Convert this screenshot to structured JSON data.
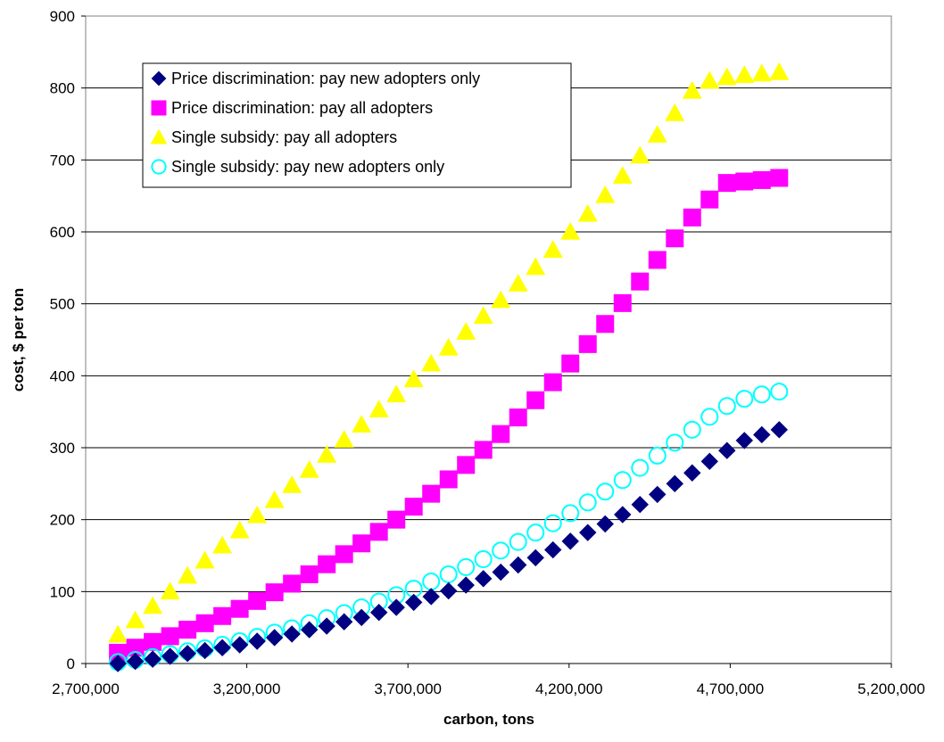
{
  "chart_data": {
    "type": "scatter",
    "title": "",
    "xlabel": "carbon, tons",
    "ylabel": "cost, $ per ton",
    "xlim": [
      2700000,
      5200000
    ],
    "ylim": [
      0,
      900
    ],
    "x_ticks": [
      "2,700,000",
      "3,200,000",
      "3,700,000",
      "4,200,000",
      "4,700,000",
      "5,200,000"
    ],
    "y_ticks": [
      "0",
      "100",
      "200",
      "300",
      "400",
      "500",
      "600",
      "700",
      "800",
      "900"
    ],
    "grid": "horizontal",
    "legend_placement": "top-left",
    "series": [
      {
        "name": "Price discrimination:  pay new adopters only",
        "marker": "diamond",
        "color": "#000080",
        "x": [
          2800000,
          2854000,
          2908000,
          2962000,
          3016000,
          3070000,
          3124000,
          3178000,
          3232000,
          3286000,
          3340000,
          3394000,
          3448000,
          3502000,
          3556000,
          3610000,
          3664000,
          3718000,
          3772000,
          3826000,
          3880000,
          3934000,
          3988000,
          4042000,
          4096000,
          4150000,
          4204000,
          4258000,
          4312000,
          4366000,
          4420000,
          4474000,
          4528000,
          4582000,
          4636000,
          4690000,
          4744000,
          4798000,
          4852000
        ],
        "y": [
          0,
          3,
          6,
          10,
          14,
          18,
          22,
          26,
          31,
          36,
          41,
          47,
          52,
          58,
          64,
          71,
          78,
          85,
          93,
          101,
          109,
          118,
          127,
          137,
          147,
          158,
          170,
          182,
          194,
          207,
          221,
          235,
          250,
          265,
          281,
          296,
          310,
          318,
          325
        ]
      },
      {
        "name": "Price discrimination:  pay all adopters",
        "marker": "square",
        "color": "#FF00FF",
        "x": [
          2800000,
          2854000,
          2908000,
          2962000,
          3016000,
          3070000,
          3124000,
          3178000,
          3232000,
          3286000,
          3340000,
          3394000,
          3448000,
          3502000,
          3556000,
          3610000,
          3664000,
          3718000,
          3772000,
          3826000,
          3880000,
          3934000,
          3988000,
          4042000,
          4096000,
          4150000,
          4204000,
          4258000,
          4312000,
          4366000,
          4420000,
          4474000,
          4528000,
          4582000,
          4636000,
          4690000,
          4744000,
          4798000,
          4852000
        ],
        "y": [
          15,
          22,
          30,
          38,
          47,
          56,
          66,
          76,
          87,
          99,
          111,
          124,
          138,
          152,
          167,
          183,
          200,
          218,
          236,
          256,
          276,
          297,
          319,
          342,
          366,
          391,
          417,
          444,
          472,
          501,
          531,
          561,
          591,
          620,
          645,
          668,
          670,
          672,
          675
        ]
      },
      {
        "name": "Single subsidy:  pay all adopters",
        "marker": "triangle",
        "color": "#FFFF00",
        "x": [
          2800000,
          2854000,
          2908000,
          2962000,
          3016000,
          3070000,
          3124000,
          3178000,
          3232000,
          3286000,
          3340000,
          3394000,
          3448000,
          3502000,
          3556000,
          3610000,
          3664000,
          3718000,
          3772000,
          3826000,
          3880000,
          3934000,
          3988000,
          4042000,
          4096000,
          4150000,
          4204000,
          4258000,
          4312000,
          4366000,
          4420000,
          4474000,
          4528000,
          4582000,
          4636000,
          4690000,
          4744000,
          4798000,
          4852000
        ],
        "y": [
          40,
          60,
          80,
          100,
          122,
          143,
          164,
          185,
          206,
          227,
          248,
          269,
          290,
          311,
          332,
          353,
          374,
          395,
          417,
          439,
          461,
          483,
          505,
          528,
          551,
          575,
          600,
          625,
          651,
          678,
          706,
          735,
          765,
          796,
          810,
          815,
          818,
          820,
          822
        ]
      },
      {
        "name": "Single subsidy:  pay new adopters only",
        "marker": "circle-open",
        "color": "#00FFFF",
        "x": [
          2800000,
          2854000,
          2908000,
          2962000,
          3016000,
          3070000,
          3124000,
          3178000,
          3232000,
          3286000,
          3340000,
          3394000,
          3448000,
          3502000,
          3556000,
          3610000,
          3664000,
          3718000,
          3772000,
          3826000,
          3880000,
          3934000,
          3988000,
          4042000,
          4096000,
          4150000,
          4204000,
          4258000,
          4312000,
          4366000,
          4420000,
          4474000,
          4528000,
          4582000,
          4636000,
          4690000,
          4744000,
          4798000,
          4852000
        ],
        "y": [
          2,
          5,
          9,
          13,
          17,
          21,
          26,
          31,
          37,
          43,
          49,
          56,
          63,
          70,
          78,
          86,
          95,
          104,
          114,
          124,
          134,
          145,
          157,
          169,
          182,
          195,
          209,
          224,
          239,
          255,
          272,
          289,
          307,
          325,
          343,
          358,
          368,
          374,
          378
        ]
      }
    ]
  }
}
